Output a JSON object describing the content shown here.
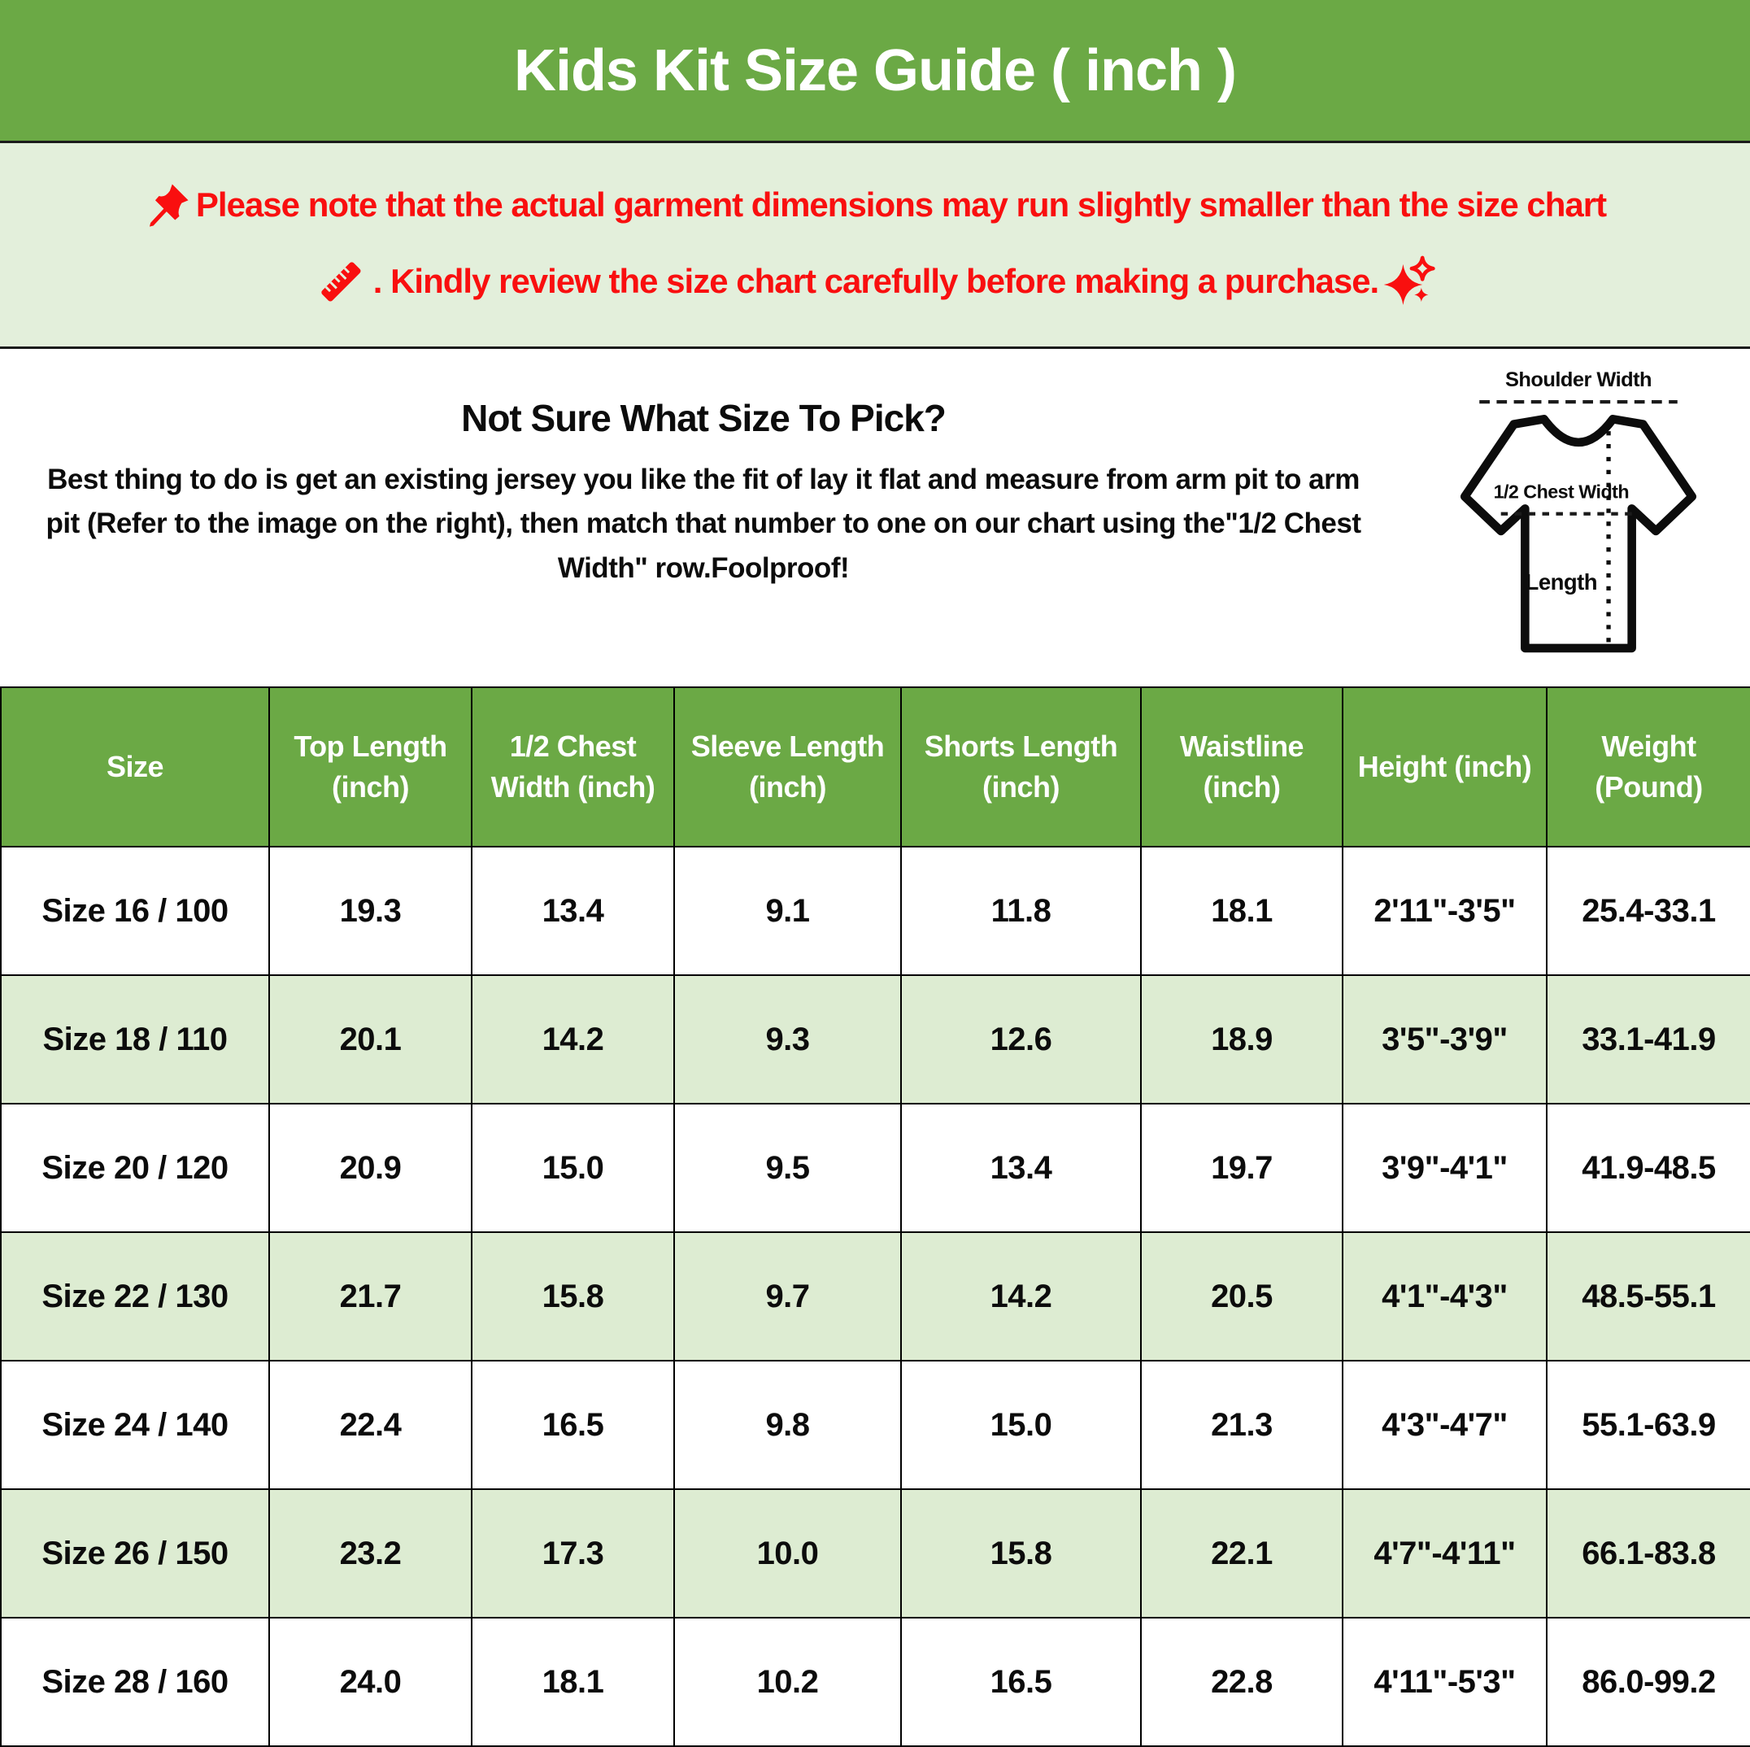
{
  "header": {
    "title": "Kids Kit Size Guide ( inch )"
  },
  "notice": {
    "line1": "Please note that the actual garment dimensions may run slightly smaller than the size chart",
    "line2": ". Kindly review the size chart carefully before making a purchase.",
    "icons": {
      "start": "pushpin-icon",
      "line2_start": "ruler-icon",
      "line2_end": "sparkles-icon"
    },
    "text_color": "#F90F0F",
    "background": "#E3EFDB"
  },
  "guide": {
    "heading": "Not Sure What Size To Pick?",
    "body": "Best thing to do is get an existing jersey you like the fit of lay it flat and measure from arm pit to arm pit (Refer to the image on the right), then match that number to one on our chart using the\"1/2 Chest Width\" row.Foolproof!"
  },
  "diagram": {
    "shoulder_label": "Shoulder Width",
    "chest_label": "1/2 Chest Width",
    "length_label": "Length"
  },
  "table": {
    "columns": [
      "Size",
      "Top Length (inch)",
      "1/2 Chest Width (inch)",
      "Sleeve Length (inch)",
      "Shorts Length (inch)",
      "Waistline (inch)",
      "Height (inch)",
      "Weight (Pound)"
    ],
    "rows": [
      [
        "Size 16 / 100",
        "19.3",
        "13.4",
        "9.1",
        "11.8",
        "18.1",
        "2'11\"-3'5\"",
        "25.4-33.1"
      ],
      [
        "Size 18 / 110",
        "20.1",
        "14.2",
        "9.3",
        "12.6",
        "18.9",
        "3'5\"-3'9\"",
        "33.1-41.9"
      ],
      [
        "Size 20 / 120",
        "20.9",
        "15.0",
        "9.5",
        "13.4",
        "19.7",
        "3'9\"-4'1\"",
        "41.9-48.5"
      ],
      [
        "Size 22 / 130",
        "21.7",
        "15.8",
        "9.7",
        "14.2",
        "20.5",
        "4'1\"-4'3\"",
        "48.5-55.1"
      ],
      [
        "Size 24 / 140",
        "22.4",
        "16.5",
        "9.8",
        "15.0",
        "21.3",
        "4'3\"-4'7\"",
        "55.1-63.9"
      ],
      [
        "Size 26 / 150",
        "23.2",
        "17.3",
        "10.0",
        "15.8",
        "22.1",
        "4'7\"-4'11\"",
        "66.1-83.8"
      ],
      [
        "Size 28 / 160",
        "24.0",
        "18.1",
        "10.2",
        "16.5",
        "22.8",
        "4'11\"-5'3\"",
        "86.0-99.2"
      ]
    ]
  },
  "colors": {
    "header_green": "#6BA945",
    "notice_green": "#E3EFDB",
    "row_alt_green": "#DDECD2",
    "notice_red": "#F90F0F",
    "text_black": "#0C0C0C",
    "border_black": "#000000"
  }
}
